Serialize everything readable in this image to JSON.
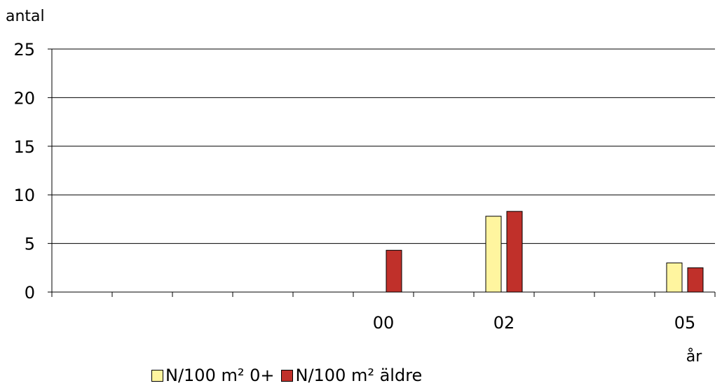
{
  "chart_data": {
    "type": "bar",
    "ylabel": "antal",
    "xlabel": "år",
    "ylim": [
      0,
      25
    ],
    "yticks": [
      0,
      5,
      10,
      15,
      20,
      25
    ],
    "grid": true,
    "legend_position": "bottom",
    "categories": [
      "",
      "",
      "",
      "",
      "",
      "00",
      "",
      "02",
      "",
      "",
      "05"
    ],
    "series": [
      {
        "name": "N/100 m² 0+",
        "color": "#FFF59F",
        "values": [
          0,
          0,
          0,
          0,
          0,
          0,
          0,
          7.8,
          0,
          0,
          3.0
        ]
      },
      {
        "name": "N/100 m² äldre",
        "color": "#C0302A",
        "values": [
          0,
          0,
          0,
          0,
          0,
          4.3,
          0,
          8.3,
          0,
          0,
          2.5
        ]
      }
    ]
  }
}
